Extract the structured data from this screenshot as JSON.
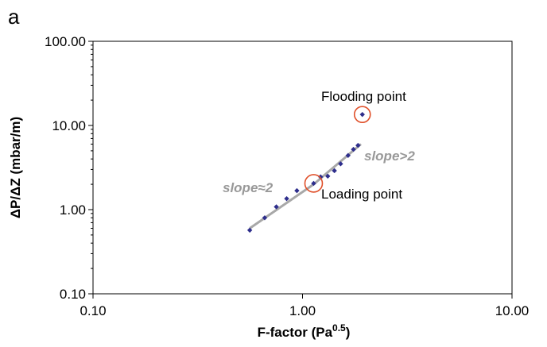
{
  "panel_label": "a",
  "colors": {
    "marker": "#2e2e8c",
    "fit_line": "#a8a8a8",
    "circle": "#e0502a",
    "slope_text": "#999999"
  },
  "chart_data": {
    "type": "scatter",
    "xscale": "log",
    "yscale": "log",
    "xlim": [
      0.1,
      10
    ],
    "ylim": [
      0.1,
      100
    ],
    "xticks": [
      "0.10",
      "1.00",
      "10.00"
    ],
    "yticks": [
      "0.10",
      "1.00",
      "10.00",
      "100.00"
    ],
    "xlabel": "F-factor (Pa",
    "xlabel_sup": "0.5",
    "xlabel_tail": ")",
    "ylabel": "ΔP/ΔZ (mbar/m)",
    "grid": false,
    "points": [
      {
        "x": 0.56,
        "y": 0.57
      },
      {
        "x": 0.66,
        "y": 0.8
      },
      {
        "x": 0.75,
        "y": 1.08
      },
      {
        "x": 0.84,
        "y": 1.35
      },
      {
        "x": 0.94,
        "y": 1.68
      },
      {
        "x": 1.13,
        "y": 2.05
      },
      {
        "x": 1.22,
        "y": 2.45
      },
      {
        "x": 1.32,
        "y": 2.5
      },
      {
        "x": 1.42,
        "y": 2.9
      },
      {
        "x": 1.52,
        "y": 3.5
      },
      {
        "x": 1.65,
        "y": 4.4
      },
      {
        "x": 1.75,
        "y": 5.2
      },
      {
        "x": 1.84,
        "y": 5.8
      },
      {
        "x": 1.93,
        "y": 13.5
      }
    ],
    "fit_lines": [
      {
        "x": [
          0.56,
          1.13
        ],
        "y": [
          0.6,
          2.0
        ]
      },
      {
        "x": [
          1.13,
          1.9
        ],
        "y": [
          2.0,
          6.0
        ]
      }
    ],
    "annotations": {
      "flooding": {
        "label": "Flooding point",
        "x": 1.93,
        "y": 13.5
      },
      "loading": {
        "label": "Loading point",
        "x": 1.13,
        "y": 2.05
      },
      "slope_low": {
        "label": "slope≈2"
      },
      "slope_high": {
        "label": "slope>2"
      }
    }
  }
}
